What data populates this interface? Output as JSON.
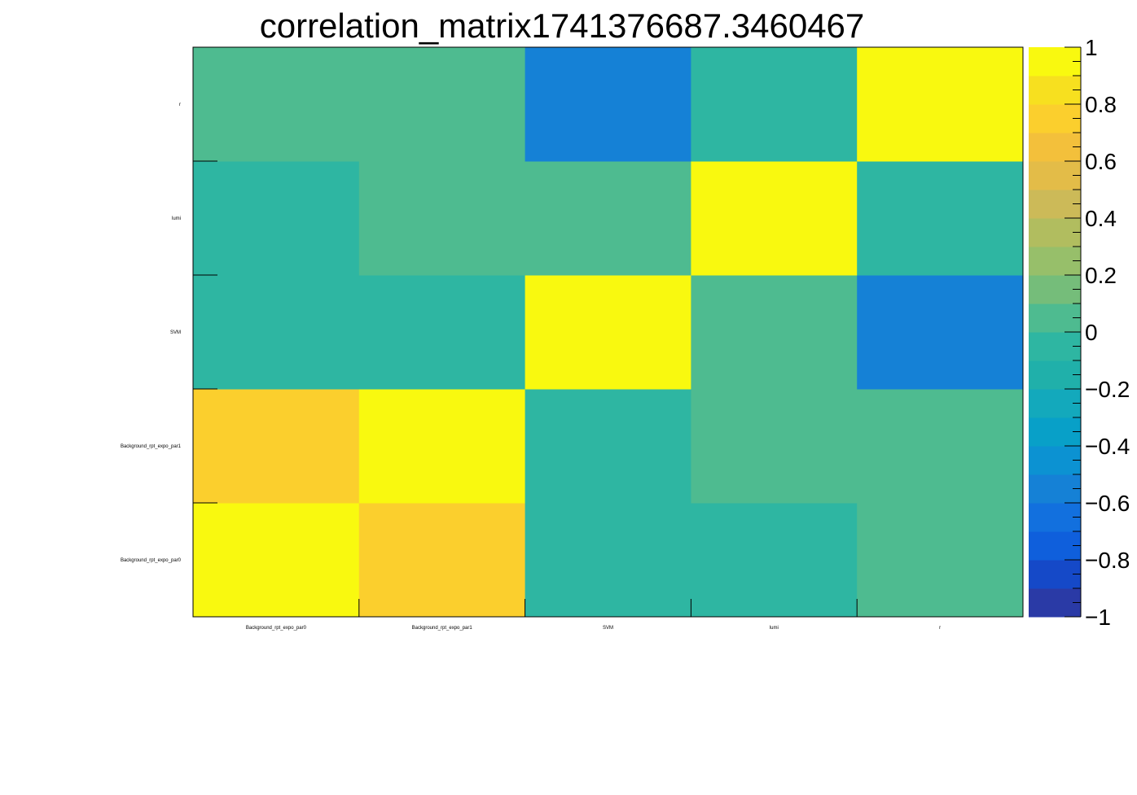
{
  "chart_data": {
    "type": "heatmap",
    "title": "correlation_matrix1741376687.3460467",
    "x_labels": [
      "Background_rpt_expo_par0",
      "Background_rpt_expo_par1",
      "SVM",
      "lumi",
      "r"
    ],
    "y_labels": [
      "Background_rpt_expo_par0",
      "Background_rpt_expo_par1",
      "SVM",
      "lumi",
      "r"
    ],
    "values": [
      [
        1.0,
        0.7,
        -0.05,
        -0.05,
        0.05
      ],
      [
        0.7,
        1.0,
        -0.05,
        0.05,
        0.05
      ],
      [
        -0.05,
        -0.05,
        1.0,
        0.05,
        -0.6
      ],
      [
        -0.05,
        0.05,
        0.05,
        1.0,
        -0.05
      ],
      [
        0.05,
        0.05,
        -0.6,
        -0.05,
        1.0
      ]
    ],
    "zlim": [
      -1,
      1
    ],
    "colorbar_ticks": [
      1,
      0.8,
      0.6,
      0.4,
      0.2,
      0,
      -0.2,
      -0.4,
      -0.6,
      -0.8,
      -1
    ],
    "colorbar_tick_labels": [
      "1",
      "0.8",
      "0.6",
      "0.4",
      "0.2",
      "0",
      "−0.2",
      "−0.4",
      "−0.6",
      "−0.8",
      "−1"
    ],
    "palette": [
      "#2a3aa6",
      "#1549c8",
      "#0f5fdc",
      "#1270de",
      "#1581d6",
      "#0c92d2",
      "#08a0c8",
      "#13a9bc",
      "#20b0aa",
      "#2eb6a2",
      "#4ebb90",
      "#75bd7a",
      "#97bf6a",
      "#b1bd5f",
      "#ccba58",
      "#e3bc48",
      "#f3c03b",
      "#fbcf2d",
      "#f7e01f",
      "#f9f90f"
    ]
  }
}
